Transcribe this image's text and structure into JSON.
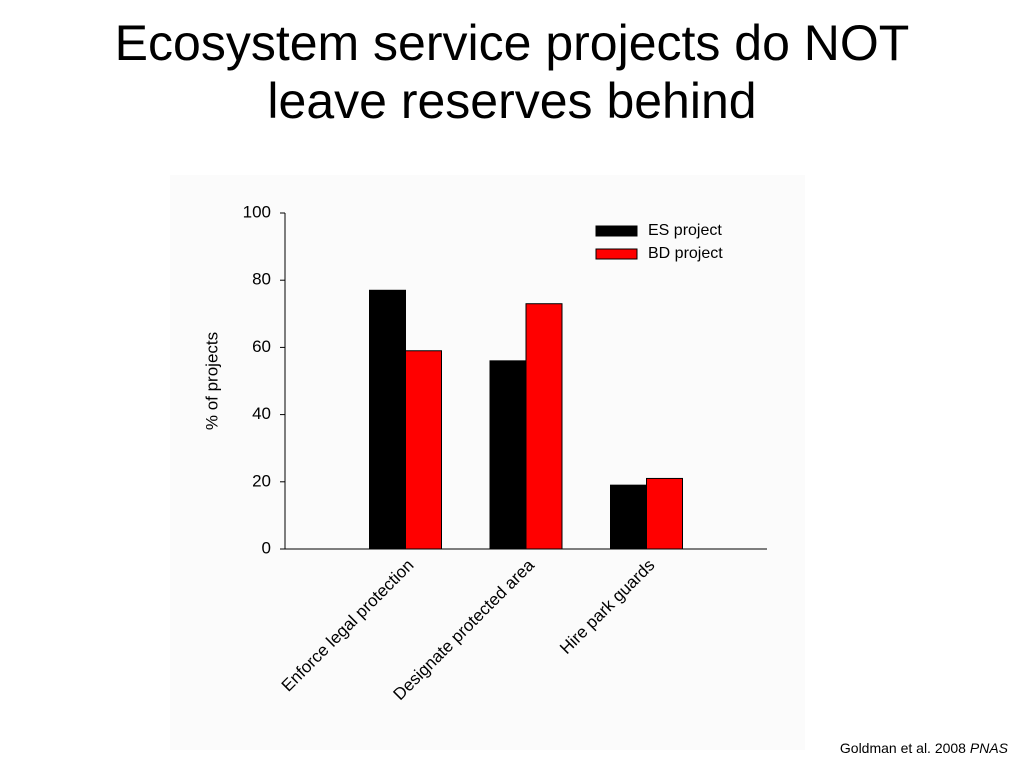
{
  "title": "Ecosystem service projects do NOT leave reserves behind",
  "citation": {
    "text": "Goldman et al. 2008",
    "journal": "PNAS"
  },
  "chart_data": {
    "type": "bar",
    "y_label": "% of projects",
    "categories": [
      "Enforce legal protection",
      "Designate protected area",
      "Hire park guards"
    ],
    "series": [
      {
        "name": "ES project",
        "color": "#000000",
        "values": [
          77,
          56,
          19
        ]
      },
      {
        "name": "BD project",
        "color": "#ff0000",
        "values": [
          59,
          73,
          21
        ]
      }
    ],
    "ylim": [
      0,
      100
    ],
    "yticks": [
      0,
      20,
      40,
      60,
      80,
      100
    ],
    "grid": false,
    "legend": "top-right"
  }
}
